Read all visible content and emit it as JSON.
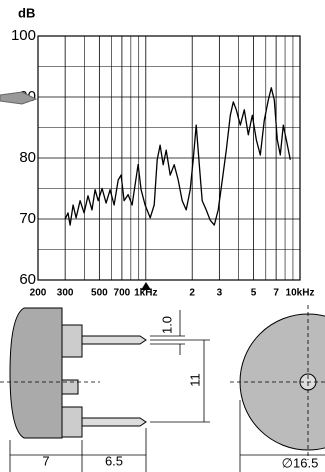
{
  "chart_data": {
    "type": "line",
    "ylabel": "dB",
    "log_x": true,
    "grid": true,
    "color": "#000000",
    "x": [
      300,
      313,
      323,
      338,
      353,
      375,
      398,
      422,
      448,
      469,
      491,
      521,
      553,
      587,
      623,
      662,
      692,
      723,
      768,
      815,
      853,
      892,
      933,
      990,
      1068,
      1133,
      1185,
      1239,
      1296,
      1356,
      1439,
      1528,
      1622,
      1722,
      1828,
      1941,
      2030,
      2124,
      2222,
      2322,
      2466,
      2618,
      2780,
      2950,
      3132,
      3325,
      3530,
      3692,
      3862,
      4100,
      4353,
      4620,
      4906,
      5208,
      5530,
      5870,
      6232,
      6518,
      6816,
      7128,
      7454,
      7796,
      8154,
      8658
    ],
    "values": [
      70,
      71,
      69,
      72.3,
      70.2,
      73,
      71,
      73.8,
      71.5,
      74.8,
      73,
      75,
      72.6,
      74.8,
      72.3,
      76.4,
      77.2,
      73,
      74,
      72.3,
      75.6,
      78.9,
      74.8,
      72.3,
      70.2,
      72.3,
      79.7,
      82.1,
      78.9,
      81.3,
      77.2,
      78.9,
      76.4,
      73,
      71.5,
      74.8,
      79.7,
      85.4,
      78.9,
      73,
      71.5,
      69.8,
      69,
      71.5,
      76.4,
      81.3,
      87,
      89.2,
      87.9,
      85.4,
      87.9,
      83.8,
      87,
      83,
      80.5,
      86.2,
      89.5,
      91.5,
      89.5,
      83,
      80.5,
      85.4,
      83,
      79.7
    ],
    "xlim": [
      200,
      10000
    ],
    "xticks": [
      200,
      300,
      500,
      700,
      {
        "value": 1000,
        "label": "1kHz"
      },
      {
        "value": 2000,
        "label": "2"
      },
      {
        "value": 3000,
        "label": "3"
      },
      {
        "value": 5000,
        "label": "5"
      },
      {
        "value": 7000,
        "label": "7"
      },
      {
        "value": 10000,
        "label": "10kHz"
      }
    ],
    "xminor": [
      400,
      600,
      800,
      900,
      4000,
      6000,
      8000,
      9000
    ],
    "ylim": [
      60,
      100
    ],
    "yticks": [
      60,
      70,
      80,
      90,
      100
    ],
    "yminor": [
      65,
      75,
      85,
      95
    ]
  },
  "drawing": {
    "dimensions": [
      "1.0",
      "11",
      "7",
      "6.5",
      "∅16.5"
    ]
  }
}
